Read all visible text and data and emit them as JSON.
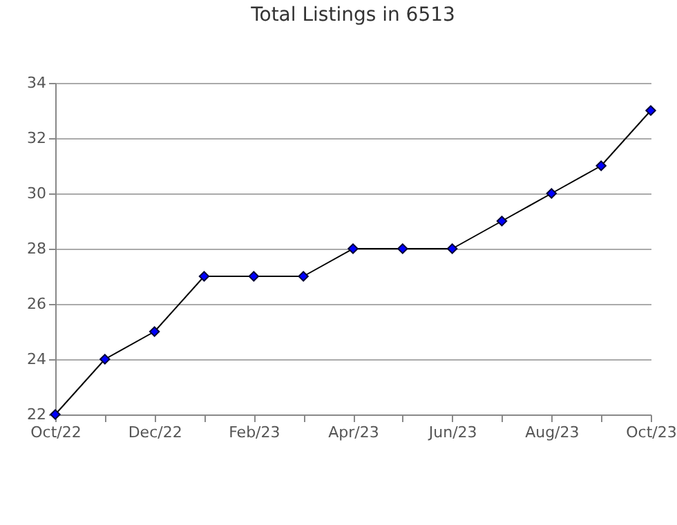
{
  "chart_data": {
    "type": "line",
    "title": "Total Listings in 6513",
    "categories": [
      "Oct/22",
      null,
      "Dec/22",
      null,
      "Feb/23",
      null,
      "Apr/23",
      null,
      "Jun/23",
      null,
      "Aug/23",
      null,
      "Oct/23"
    ],
    "series": [
      {
        "color": "#0000ff",
        "values": [
          22,
          24,
          25,
          27,
          27,
          27,
          28,
          28,
          28,
          29,
          30,
          31,
          33
        ]
      }
    ],
    "marker": "diamond",
    "ylim": [
      22,
      34
    ],
    "yticks": [
      22,
      24,
      26,
      28,
      30,
      32,
      34
    ],
    "grid": "y"
  }
}
